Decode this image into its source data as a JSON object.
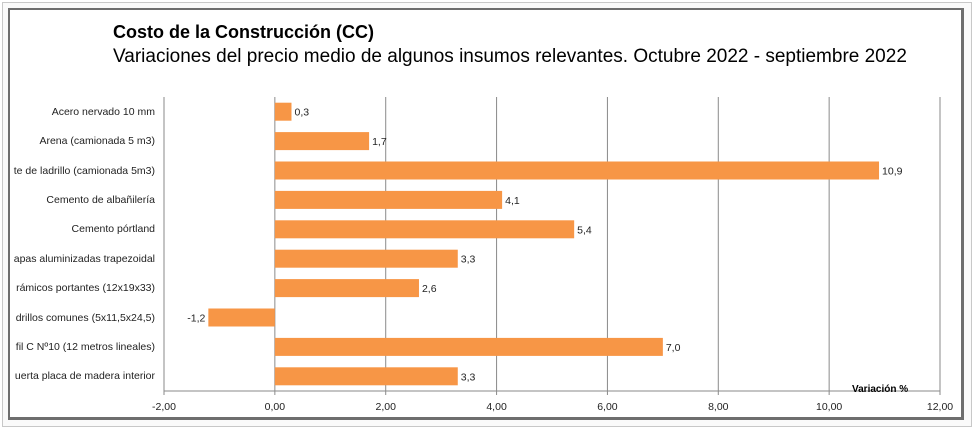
{
  "chart_data": {
    "type": "bar",
    "orientation": "horizontal",
    "title": "Costo de la Construcción (CC)",
    "subtitle": "Variaciones del precio medio de algunos insumos relevantes. Octubre 2022 - septiembre 2022",
    "xlabel": "Variación %",
    "ylabel": "",
    "categories": [
      "Acero nervado 10 mm",
      "Arena (camionada 5 m3)",
      "te de ladrillo (camionada 5m3)",
      "Cemento de albañilería",
      "Cemento pórtland",
      "apas aluminizadas trapezoidal",
      "rámicos portantes (12x19x33)",
      "drillos comunes (5x11,5x24,5)",
      "fil C Nº10 (12 metros  lineales)",
      "uerta placa de madera interior"
    ],
    "values": [
      0.3,
      1.7,
      10.9,
      4.1,
      5.4,
      3.3,
      2.6,
      -1.2,
      7.0,
      3.3
    ],
    "data_labels": [
      "0,3",
      "1,7",
      "10,9",
      "4,1",
      "5,4",
      "3,3",
      "2,6",
      "-1,2",
      "7,0",
      "3,3"
    ],
    "xlim": [
      -2,
      12
    ],
    "xticks": [
      -2,
      0,
      2,
      4,
      6,
      8,
      10,
      12
    ],
    "xtick_labels": [
      "-2,00",
      "0,00",
      "2,00",
      "4,00",
      "6,00",
      "8,00",
      "10,00",
      "12,00"
    ],
    "grid": "vertical",
    "legend": "none",
    "bar_color": "#f79646"
  }
}
